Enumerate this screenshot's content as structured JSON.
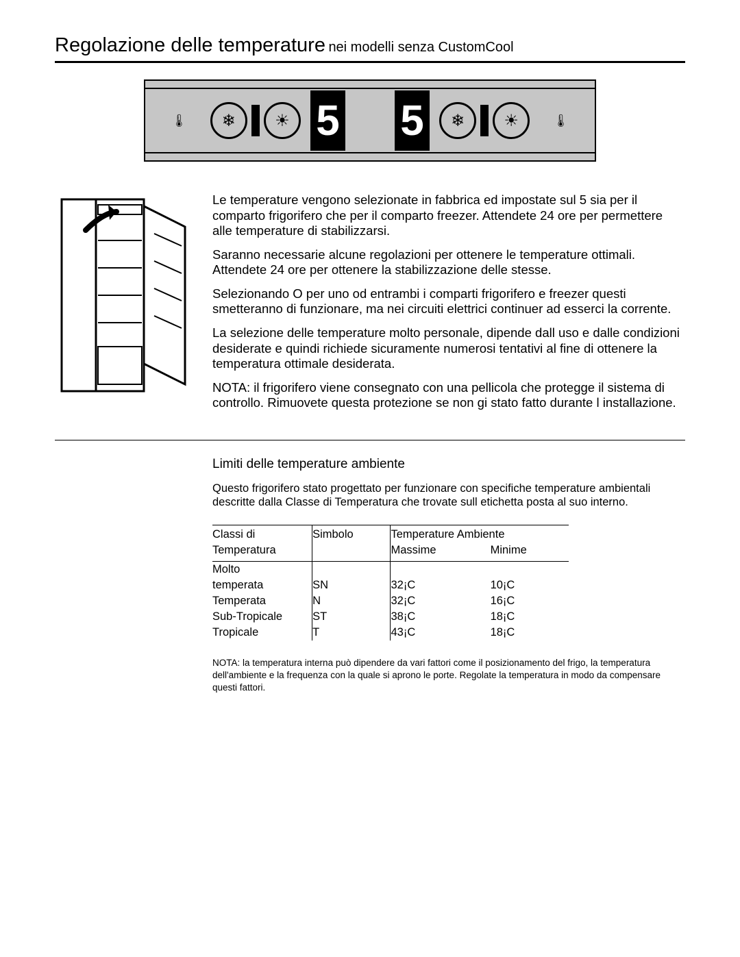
{
  "title": {
    "main": "Regolazione delle temperature",
    "sub": "nei modelli senza CustomCool"
  },
  "panel": {
    "display_left": "5",
    "display_right": "5",
    "dial_snow_glyph": "❄",
    "dial_sun_glyph": "☀",
    "therm_glyph": "🌡"
  },
  "paragraphs": {
    "p1": "Le temperature vengono selezionate in fabbrica ed impostate sul 5 sia per il comparto frigorifero che per il comparto freezer. Attendete 24 ore per permettere alle temperature di stabilizzarsi.",
    "p2": "Saranno necessarie alcune regolazioni per ottenere le temperature ottimali. Attendete 24 ore per ottenere la stabilizzazione delle stesse.",
    "p3": "Selezionando O per uno od entrambi i comparti frigorifero e freezer questi smetteranno di funzionare, ma nei circuiti elettrici continuer  ad esserci la corrente.",
    "p4": "La selezione delle temperature   molto personale, dipende dall uso e dalle condizioni desiderate e quindi richiede sicuramente numerosi tentativi al fine di ottenere la temperatura ottimale desiderata.",
    "p5": "NOTA: il frigorifero viene consegnato con una pellicola che protegge il sistema di controllo. Rimuovete questa protezione se non   gi  stato fatto durante l installazione."
  },
  "limits": {
    "title": "Limiti delle temperature ambiente",
    "intro": "Questo frigorifero   stato progettato per funzionare con specifiche temperature ambientali descritte dalla  Classe di Temperatura  che trovate sull etichetta posta al suo interno.",
    "headers": {
      "classi": "Classi di",
      "temperatura": "Temperatura",
      "simbolo": "Simbolo",
      "temp_amb": "Temperature Ambiente",
      "massime": "Massime",
      "minime": "Minime"
    },
    "rows": [
      {
        "class_a": "Molto",
        "class_b": "temperata",
        "sym": "SN",
        "max": "32¡C",
        "min": "10¡C"
      },
      {
        "class_a": "Temperata",
        "class_b": "",
        "sym": "N",
        "max": "32¡C",
        "min": "16¡C"
      },
      {
        "class_a": "Sub-Tropicale",
        "class_b": "",
        "sym": "ST",
        "max": "38¡C",
        "min": "18¡C"
      },
      {
        "class_a": "Tropicale",
        "class_b": "",
        "sym": "T",
        "max": "43¡C",
        "min": "18¡C"
      }
    ],
    "note": "NOTA: la temperatura interna può dipendere da vari fattori come il posizionamento del frigo, la temperatura dell'ambiente e la frequenza con la quale si aprono le porte. Regolate la temperatura in modo da compensare questi fattori."
  }
}
